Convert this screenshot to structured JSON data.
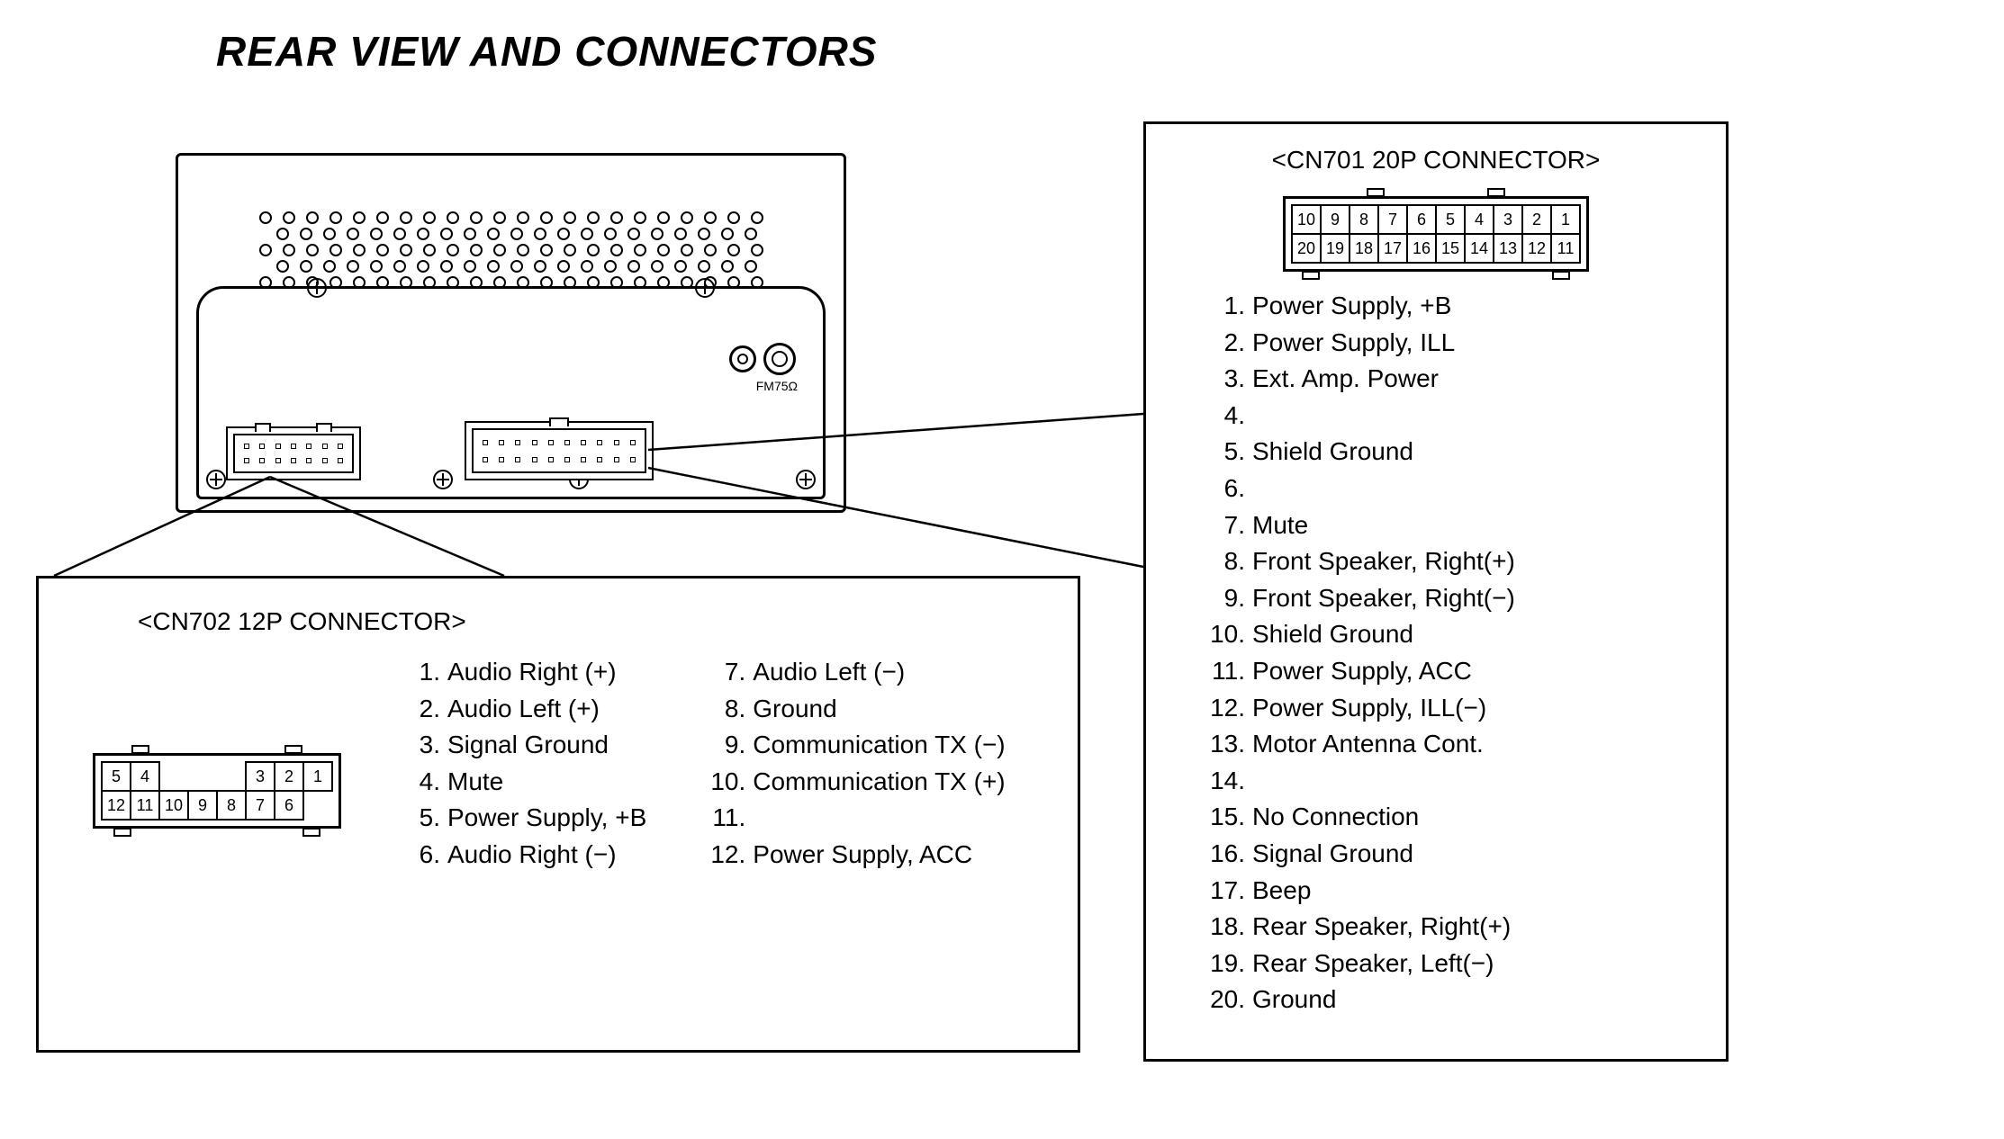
{
  "title": "REAR VIEW AND CONNECTORS",
  "fm_label": "FM75Ω",
  "colors": {
    "line": "#000000",
    "bg": "#ffffff"
  },
  "device": {
    "vent_rows": 5,
    "vent_cols": 22
  },
  "cn702": {
    "title": "<CN702 12P CONNECTOR>",
    "pin_layout": {
      "type": "connector-grid",
      "rows": 2,
      "top_row": [
        "5",
        "4",
        "",
        "",
        "",
        "3",
        "2",
        "1"
      ],
      "bottom_row": [
        "12",
        "11",
        "10",
        "9",
        "8",
        "7",
        "6"
      ],
      "top_has_gap": true
    },
    "pins_left": [
      {
        "n": "1.",
        "t": "Audio Right (+)"
      },
      {
        "n": "2.",
        "t": "Audio Left (+)"
      },
      {
        "n": "3.",
        "t": "Signal Ground"
      },
      {
        "n": "4.",
        "t": "Mute"
      },
      {
        "n": "5.",
        "t": "Power Supply, +B"
      },
      {
        "n": "6.",
        "t": "Audio Right (−)"
      }
    ],
    "pins_right": [
      {
        "n": "7.",
        "t": "Audio Left (−)"
      },
      {
        "n": "8.",
        "t": "Ground"
      },
      {
        "n": "9.",
        "t": "Communication TX (−)"
      },
      {
        "n": "10.",
        "t": "Communication TX (+)"
      },
      {
        "n": "11.",
        "t": ""
      },
      {
        "n": "12.",
        "t": "Power Supply, ACC"
      }
    ]
  },
  "cn701": {
    "title": "<CN701 20P CONNECTOR>",
    "pin_layout": {
      "type": "connector-grid",
      "rows": 2,
      "top_row": [
        "10",
        "9",
        "8",
        "7",
        "6",
        "5",
        "4",
        "3",
        "2",
        "1"
      ],
      "bottom_row": [
        "20",
        "19",
        "18",
        "17",
        "16",
        "15",
        "14",
        "13",
        "12",
        "11"
      ]
    },
    "pins": [
      {
        "n": "1.",
        "t": "Power Supply, +B"
      },
      {
        "n": "2.",
        "t": "Power Supply, ILL"
      },
      {
        "n": "3.",
        "t": "Ext. Amp. Power"
      },
      {
        "n": "4.",
        "t": ""
      },
      {
        "n": "5.",
        "t": "Shield Ground"
      },
      {
        "n": "6.",
        "t": ""
      },
      {
        "n": "7.",
        "t": "Mute"
      },
      {
        "n": "8.",
        "t": "Front Speaker, Right(+)"
      },
      {
        "n": "9.",
        "t": "Front Speaker, Right(−)"
      },
      {
        "n": "10.",
        "t": "Shield Ground"
      },
      {
        "n": "11.",
        "t": "Power Supply, ACC"
      },
      {
        "n": "12.",
        "t": "Power Supply, ILL(−)"
      },
      {
        "n": "13.",
        "t": "Motor Antenna Cont."
      },
      {
        "n": "14.",
        "t": ""
      },
      {
        "n": "15.",
        "t": "No Connection"
      },
      {
        "n": "16.",
        "t": "Signal Ground"
      },
      {
        "n": "17.",
        "t": "Beep"
      },
      {
        "n": "18.",
        "t": "Rear Speaker, Right(+)"
      },
      {
        "n": "19.",
        "t": "Rear Speaker, Left(−)"
      },
      {
        "n": "20.",
        "t": "Ground"
      }
    ]
  },
  "callout_lines": {
    "stroke": "#000000",
    "stroke_width": 2.5,
    "cn702_line": "M 300 530 L 60 640 M 300 530 L 560 640",
    "cn701_line": "M 720 500 L 1270 460 M 720 520 L 1270 630"
  }
}
